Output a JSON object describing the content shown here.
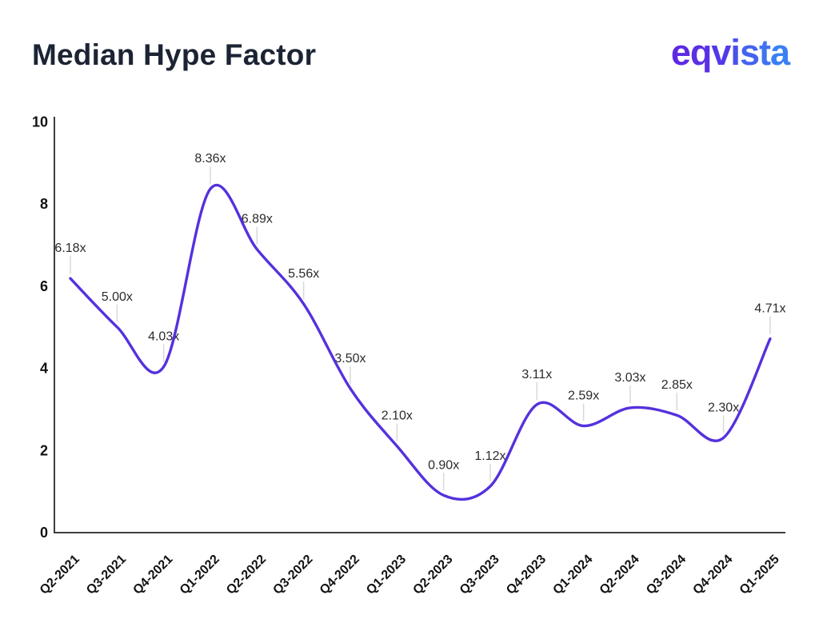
{
  "header": {
    "title": "Median Hype Factor",
    "title_color": "#1c2434",
    "logo_text": "eqvista",
    "logo_letter_colors": [
      "#5e29e3",
      "#5a30e5",
      "#5339e8",
      "#4950eb",
      "#4562ee",
      "#3f73f1",
      "#3a80f4"
    ]
  },
  "chart_data": {
    "type": "line",
    "title": "Median Hype Factor",
    "categories": [
      "Q2-2021",
      "Q3-2021",
      "Q4-2021",
      "Q1-2022",
      "Q2-2022",
      "Q3-2022",
      "Q4-2022",
      "Q1-2023",
      "Q2-2023",
      "Q3-2023",
      "Q4-2023",
      "Q1-2024",
      "Q2-2024",
      "Q3-2024",
      "Q4-2024",
      "Q1-2025"
    ],
    "values": [
      6.18,
      5.0,
      4.03,
      8.36,
      6.89,
      5.56,
      3.5,
      2.1,
      0.9,
      1.12,
      3.11,
      2.59,
      3.03,
      2.85,
      2.3,
      4.71
    ],
    "point_labels": [
      "6.18x",
      "5.00x",
      "4.03x",
      "8.36x",
      "6.89x",
      "5.56x",
      "3.50x",
      "2.10x",
      "0.90x",
      "1.12x",
      "3.11x",
      "2.59x",
      "3.03x",
      "2.85x",
      "2.30x",
      "4.71x"
    ],
    "y_ticks": [
      0,
      2,
      4,
      6,
      8,
      10
    ],
    "ylim": [
      0,
      10
    ],
    "xlabel": "",
    "ylabel": "",
    "grid": false,
    "legend": "none",
    "smooth": true,
    "colors": {
      "line": "#5531dd",
      "axis": "#3d3d3d",
      "tick_label": "#121212",
      "data_label": "#2b2b2b",
      "leader": "#d9d9d9"
    }
  }
}
